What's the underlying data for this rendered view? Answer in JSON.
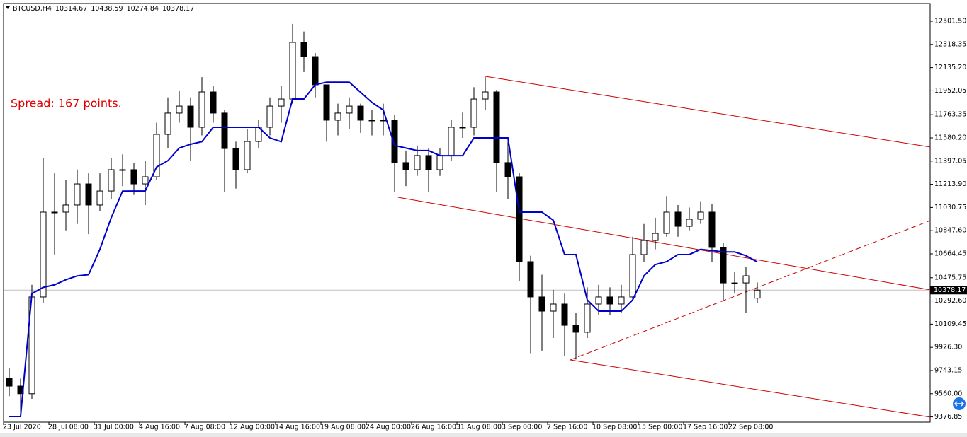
{
  "chart_data": {
    "type": "candlestick",
    "symbol": "BTCUSD,H4",
    "annotation": "Spread: 167 points.",
    "categories": [
      "23 Jul 2020",
      null,
      null,
      null,
      "28 Jul 08:00",
      null,
      null,
      null,
      "31 Jul 00:00",
      null,
      null,
      null,
      "4 Aug 16:00",
      null,
      null,
      null,
      "7 Aug 08:00",
      null,
      null,
      null,
      "12 Aug 00:00",
      null,
      null,
      null,
      "14 Aug 16:00",
      null,
      null,
      null,
      "19 Aug 08:00",
      null,
      null,
      null,
      "24 Aug 00:00",
      null,
      null,
      null,
      "26 Aug 16:00",
      null,
      null,
      null,
      "31 Aug 08:00",
      null,
      null,
      null,
      "3 Sep 00:00",
      null,
      null,
      null,
      "7 Sep 16:00",
      null,
      null,
      null,
      "10 Sep 08:00",
      null,
      null,
      null,
      "15 Sep 00:00",
      null,
      null,
      null,
      "17 Sep 16:00",
      null,
      null,
      null,
      "22 Sep 08:00",
      null,
      null
    ],
    "open": [
      9680,
      9620,
      9560,
      10324,
      10994,
      10994,
      11050,
      11217,
      11050,
      11161,
      11329,
      11329,
      11217,
      11273,
      11608,
      11776,
      11831,
      11664,
      11943,
      11776,
      11496,
      11329,
      11552,
      11664,
      11831,
      11887,
      12334,
      12222,
      11999,
      11720,
      11776,
      11831,
      11720,
      11720,
      11720,
      11385,
      11329,
      11441,
      11329,
      11441,
      11664,
      11664,
      11887,
      11943,
      11385,
      11273,
      10603,
      10324,
      10212,
      10268,
      10100,
      10045,
      10268,
      10324,
      10268,
      10324,
      10659,
      10770,
      10826,
      10994,
      10882,
      10938,
      10994,
      10715,
      10435,
      10435,
      10314.67
    ],
    "high": [
      9760,
      9680,
      10420,
      11420,
      11300,
      11250,
      11330,
      11300,
      11300,
      11420,
      11450,
      11380,
      11400,
      11700,
      11900,
      11950,
      11900,
      12060,
      11990,
      11800,
      11550,
      11650,
      11720,
      11900,
      11990,
      12480,
      12420,
      12250,
      12000,
      11850,
      11900,
      11850,
      11800,
      11850,
      11760,
      11480,
      11520,
      11500,
      11500,
      11720,
      11780,
      11980,
      12060,
      11960,
      11550,
      11300,
      10650,
      10500,
      10380,
      10350,
      10200,
      10400,
      10420,
      10400,
      10420,
      10800,
      10900,
      10950,
      11120,
      11050,
      11030,
      11080,
      11060,
      10750,
      10520,
      10560,
      10438.59
    ],
    "low": [
      9540,
      9400,
      9520,
      10280,
      10660,
      10850,
      10900,
      10820,
      11000,
      11100,
      11200,
      11130,
      11050,
      11250,
      11500,
      11700,
      11400,
      11600,
      11700,
      11150,
      11180,
      11300,
      11500,
      11600,
      11700,
      11850,
      12100,
      11900,
      11550,
      11600,
      11650,
      11620,
      11600,
      11600,
      11150,
      11200,
      11280,
      11150,
      11280,
      11400,
      11580,
      11600,
      11800,
      11150,
      11100,
      10450,
      9880,
      9900,
      10000,
      9860,
      9830,
      10000,
      10180,
      10180,
      10200,
      10300,
      10600,
      10700,
      10800,
      10800,
      10850,
      10900,
      10600,
      10300,
      10350,
      10200,
      10274.84
    ],
    "close": [
      9620,
      9560,
      10324,
      10994,
      10994,
      11050,
      11217,
      11050,
      11161,
      11329,
      11329,
      11217,
      11273,
      11608,
      11776,
      11831,
      11664,
      11943,
      11776,
      11496,
      11329,
      11552,
      11664,
      11831,
      11887,
      12334,
      12222,
      11999,
      11720,
      11776,
      11831,
      11720,
      11720,
      11720,
      11385,
      11329,
      11441,
      11329,
      11441,
      11664,
      11664,
      11887,
      11943,
      11385,
      11273,
      10603,
      10324,
      10212,
      10268,
      10100,
      10045,
      10268,
      10324,
      10268,
      10324,
      10659,
      10770,
      10826,
      10994,
      10882,
      10938,
      10994,
      10715,
      10435,
      10435,
      10491,
      10378.17
    ],
    "series": [
      {
        "color": "#0000cc",
        "values": [
          9380,
          9380,
          10350,
          10400,
          10420,
          10460,
          10490,
          10500,
          10700,
          10950,
          11160,
          11161,
          11161,
          11350,
          11400,
          11500,
          11530,
          11550,
          11664,
          11664,
          11664,
          11664,
          11664,
          11580,
          11550,
          11887,
          11887,
          12000,
          12020,
          12020,
          12020,
          11940,
          11860,
          11800,
          11520,
          11500,
          11480,
          11480,
          11440,
          11440,
          11440,
          11580,
          11580,
          11580,
          11580,
          10994,
          10994,
          10994,
          10930,
          10659,
          10659,
          10300,
          10212,
          10212,
          10212,
          10300,
          10491,
          10580,
          10603,
          10659,
          10659,
          10700,
          10690,
          10680,
          10680,
          10650,
          10600
        ]
      }
    ],
    "trendlines": [
      {
        "x": [
          42,
          81.25
        ],
        "y": [
          12066,
          11508
        ],
        "color": "#cc0000",
        "dashed": false
      },
      {
        "x": [
          34.3,
          81.25
        ],
        "y": [
          11111,
          10380
        ],
        "color": "#cc0000",
        "dashed": false
      },
      {
        "x": [
          49.5,
          81.25
        ],
        "y": [
          9827,
          9375
        ],
        "color": "#cc0000",
        "dashed": false
      },
      {
        "x": [
          49.5,
          81.25
        ],
        "y": [
          9827,
          10927
        ],
        "color": "#cc0000",
        "dashed": true
      }
    ],
    "xlim": [
      -0.5,
      81.25
    ],
    "ylim": [
      9335.4,
      12641.1
    ],
    "yticks": [
      {
        "value": 12501.5,
        "label": "12501.50"
      },
      {
        "value": 12318.35,
        "label": "12318.35"
      },
      {
        "value": 12135.2,
        "label": "12135.20"
      },
      {
        "value": 11952.05,
        "label": "11952.05"
      },
      {
        "value": 11763.35,
        "label": "11763.35"
      },
      {
        "value": 11580.2,
        "label": "11580.20"
      },
      {
        "value": 11397.05,
        "label": "11397.05"
      },
      {
        "value": 11213.9,
        "label": "11213.90"
      },
      {
        "value": 11030.75,
        "label": "11030.75"
      },
      {
        "value": 10847.6,
        "label": "10847.60"
      },
      {
        "value": 10664.45,
        "label": "10664.45"
      },
      {
        "value": 10475.75,
        "label": "10475.75"
      },
      {
        "value": 10292.6,
        "label": "10292.60"
      },
      {
        "value": 10109.45,
        "label": "10109.45"
      },
      {
        "value": 9926.3,
        "label": "9926.30"
      },
      {
        "value": 9743.15,
        "label": "9743.15"
      },
      {
        "value": 9560,
        "label": "9560.00"
      },
      {
        "value": 9376.85,
        "label": "9376.85"
      }
    ]
  }
}
